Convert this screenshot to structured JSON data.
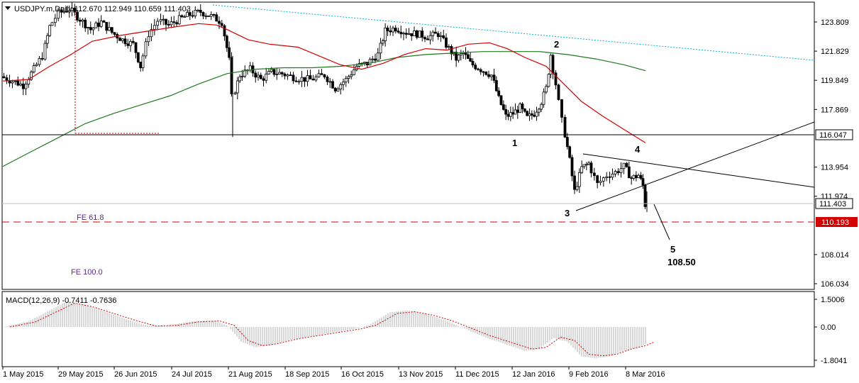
{
  "window": {
    "title": "USDJPY.m,Daily",
    "ohlc_readout": "112.670 112.949 110.659 111.403"
  },
  "chart_data": [
    {
      "type": "candlestick",
      "symbol": "USDJPY.m",
      "timeframe": "Daily",
      "ylim": [
        105.6,
        125.0
      ],
      "price_ticks": [
        "123.809",
        "121.829",
        "119.849",
        "117.869",
        "113.954",
        "111.974",
        "108.014",
        "106.034"
      ],
      "date_ticks": [
        "1 May 2015",
        "29 May 2015",
        "26 Jun 2015",
        "24 Jul 2015",
        "21 Aug 2015",
        "18 Sep 2015",
        "16 Oct 2015",
        "13 Nov 2015",
        "11 Dec 2015",
        "12 Jan 2016",
        "9 Feb 2016",
        "8 Mar 2016"
      ],
      "price_labels": [
        {
          "value": 116.047,
          "text": "116.047",
          "style": "horizontal-line"
        },
        {
          "value": 111.403,
          "text": "111.403",
          "style": "current-price"
        },
        {
          "value": 110.193,
          "text": "110.193",
          "style": "fe-618-red"
        }
      ],
      "wave_labels": [
        "1",
        "2",
        "3",
        "4",
        "5"
      ],
      "target_label": "108.50",
      "fe_labels": [
        "FE 61.8",
        "FE 100.0"
      ],
      "series": [
        {
          "name": "price",
          "color": "#000000"
        },
        {
          "name": "ma-fast",
          "color": "#d40000"
        },
        {
          "name": "ma-slow",
          "color": "#1e7a1e"
        }
      ],
      "grid": false
    },
    {
      "type": "bar",
      "title": "MACD(12,26,9) -0.7411 -0.7636",
      "ylim": [
        -2.0,
        1.7
      ],
      "ticks": [
        "1.5006",
        "0.00",
        "-1.8041"
      ],
      "histogram_color": "#b0b0b0",
      "signal_color": "#d40000"
    }
  ]
}
